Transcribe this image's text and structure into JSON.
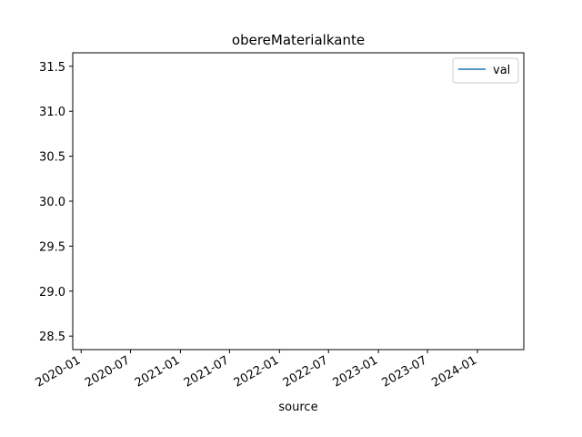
{
  "chart_data": {
    "type": "line",
    "title": "obereMaterialkante",
    "xlabel": "source",
    "ylabel": "",
    "x_axis_kind": "date",
    "xlim": [
      "2019-12-01",
      "2024-06-20"
    ],
    "ylim": [
      28.35,
      31.65
    ],
    "x_ticks": [
      "2020-01",
      "2020-07",
      "2021-01",
      "2021-07",
      "2022-01",
      "2022-07",
      "2023-01",
      "2023-07",
      "2024-01"
    ],
    "y_ticks": [
      "28.5",
      "29.0",
      "29.5",
      "30.0",
      "30.5",
      "31.0",
      "31.5"
    ],
    "grid": false,
    "legend_position": "top-right",
    "series": [
      {
        "name": "val",
        "color": "#1f77b4",
        "x": [],
        "y": []
      }
    ]
  }
}
